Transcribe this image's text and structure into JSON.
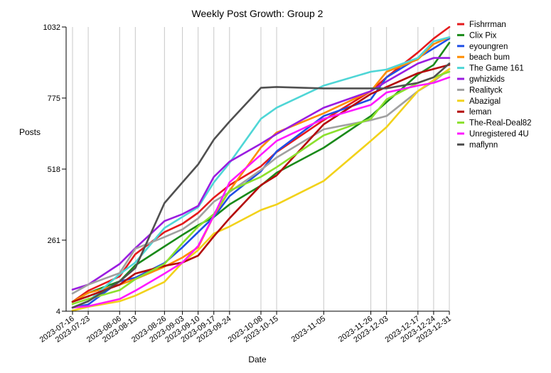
{
  "chart_data": {
    "type": "line",
    "title": "Weekly Post Growth: Group 2",
    "xlabel": "Date",
    "ylabel": "Posts",
    "ylim": [
      4,
      1032
    ],
    "yticks": [
      4,
      261,
      518,
      775,
      1032
    ],
    "ytick_labels": [
      "4",
      "261",
      "518",
      "775",
      "1032"
    ],
    "x": [
      "2023-07-16",
      "2023-07-23",
      "2023-08-06",
      "2023-08-13",
      "2023-08-26",
      "2023-09-03",
      "2023-09-10",
      "2023-09-17",
      "2023-09-24",
      "2023-10-08",
      "2023-10-15",
      "2023-11-05",
      "2023-11-26",
      "2023-12-03",
      "2023-12-17",
      "2023-12-24",
      "2023-12-31"
    ],
    "grid": "vertical",
    "legend_position": "right",
    "series": [
      {
        "name": "Fishrrman",
        "color": "#e41a1c",
        "values": [
          38,
          78,
          130,
          210,
          290,
          320,
          360,
          415,
          460,
          528,
          580,
          695,
          800,
          850,
          940,
          990,
          1032
        ]
      },
      {
        "name": "Clix Pix",
        "color": "#1a8a1a",
        "values": [
          38,
          70,
          112,
          170,
          238,
          280,
          315,
          345,
          390,
          458,
          505,
          595,
          710,
          760,
          860,
          895,
          975
        ]
      },
      {
        "name": "eyoungren",
        "color": "#1f4fe6",
        "values": [
          17,
          28,
          112,
          125,
          178,
          235,
          290,
          345,
          420,
          510,
          582,
          710,
          770,
          850,
          920,
          955,
          990
        ]
      },
      {
        "name": "beach bum",
        "color": "#ff8c00",
        "values": [
          38,
          70,
          100,
          120,
          165,
          198,
          235,
          350,
          440,
          596,
          650,
          720,
          800,
          870,
          915,
          970,
          995
        ]
      },
      {
        "name": "The Game 161",
        "color": "#4fd6d6",
        "values": [
          17,
          40,
          138,
          180,
          305,
          345,
          380,
          470,
          540,
          700,
          740,
          820,
          870,
          878,
          920,
          980,
          995
        ]
      },
      {
        "name": "gwhizkids",
        "color": "#9a1ce0",
        "values": [
          82,
          100,
          175,
          232,
          330,
          355,
          385,
          490,
          545,
          610,
          645,
          740,
          800,
          835,
          900,
          920,
          920
        ]
      },
      {
        "name": "Realityck",
        "color": "#a0a0a0",
        "values": [
          68,
          100,
          142,
          230,
          272,
          300,
          340,
          400,
          435,
          515,
          560,
          662,
          695,
          710,
          800,
          835,
          880
        ]
      },
      {
        "name": "Abazigal",
        "color": "#f2d21a",
        "values": [
          6,
          20,
          40,
          60,
          110,
          180,
          225,
          285,
          310,
          370,
          390,
          475,
          620,
          670,
          800,
          840,
          880
        ]
      },
      {
        "name": "leman",
        "color": "#b40808",
        "values": [
          38,
          58,
          100,
          140,
          168,
          180,
          205,
          275,
          340,
          460,
          495,
          680,
          790,
          815,
          865,
          880,
          895
        ]
      },
      {
        "name": "The-Real-Deal82",
        "color": "#8be02c",
        "values": [
          30,
          48,
          80,
          120,
          175,
          250,
          310,
          355,
          440,
          490,
          525,
          640,
          700,
          770,
          830,
          850,
          870
        ]
      },
      {
        "name": "Unregistered 4U",
        "color": "#ff1aff",
        "values": [
          17,
          22,
          48,
          78,
          140,
          180,
          240,
          350,
          470,
          570,
          620,
          700,
          750,
          795,
          820,
          830,
          850
        ]
      },
      {
        "name": "maflynn",
        "color": "#505050",
        "values": [
          17,
          40,
          112,
          160,
          395,
          470,
          535,
          625,
          690,
          812,
          815,
          810,
          810,
          810,
          830,
          850,
          900
        ]
      }
    ]
  }
}
